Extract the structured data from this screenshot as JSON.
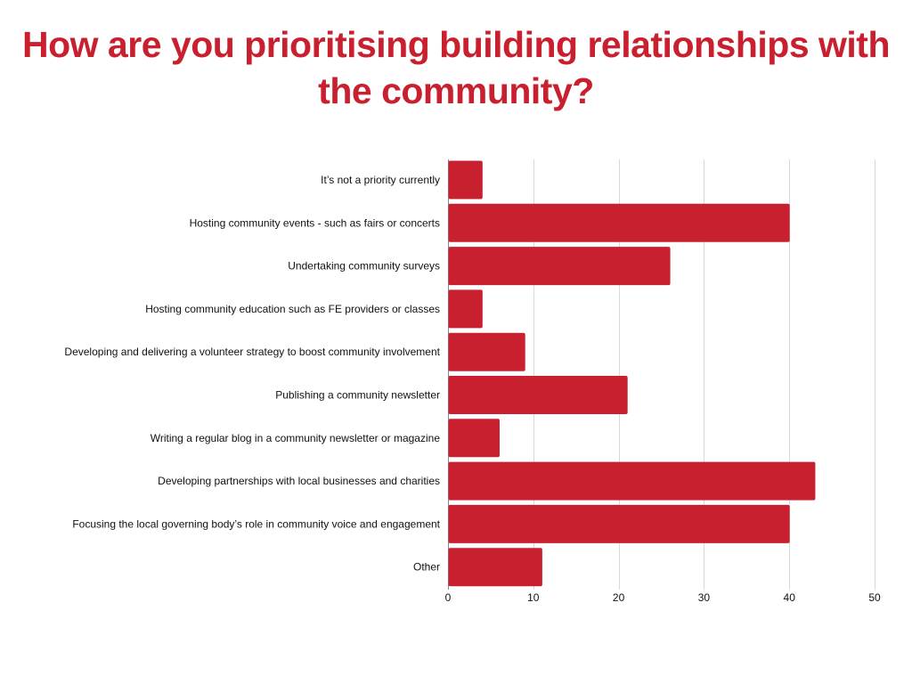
{
  "colors": {
    "title": "#c8202f",
    "bar": "#c8202f",
    "grid": "#d9d9d9",
    "axis": "#888888",
    "text": "#111111"
  },
  "chart_data": {
    "type": "bar",
    "orientation": "horizontal",
    "title": "How are you prioritising building relationships with the community?",
    "xlabel": "",
    "ylabel": "",
    "categories": [
      "It’s not a priority currently",
      "Hosting community events - such as fairs or concerts",
      "Undertaking community surveys",
      "Hosting community education such as FE providers or classes",
      "Developing and delivering a volunteer strategy to boost community involvement",
      "Publishing a community newsletter",
      "Writing a regular blog in a community newsletter or magazine",
      "Developing partnerships with local businesses and charities",
      "Focusing the local governing body’s role in community voice and engagement",
      "Other"
    ],
    "values": [
      4,
      40,
      26,
      4,
      9,
      21,
      6,
      43,
      40,
      11
    ],
    "xlim": [
      0,
      50
    ],
    "xticks": [
      0,
      10,
      20,
      30,
      40,
      50
    ],
    "grid": true,
    "legend": "none"
  }
}
